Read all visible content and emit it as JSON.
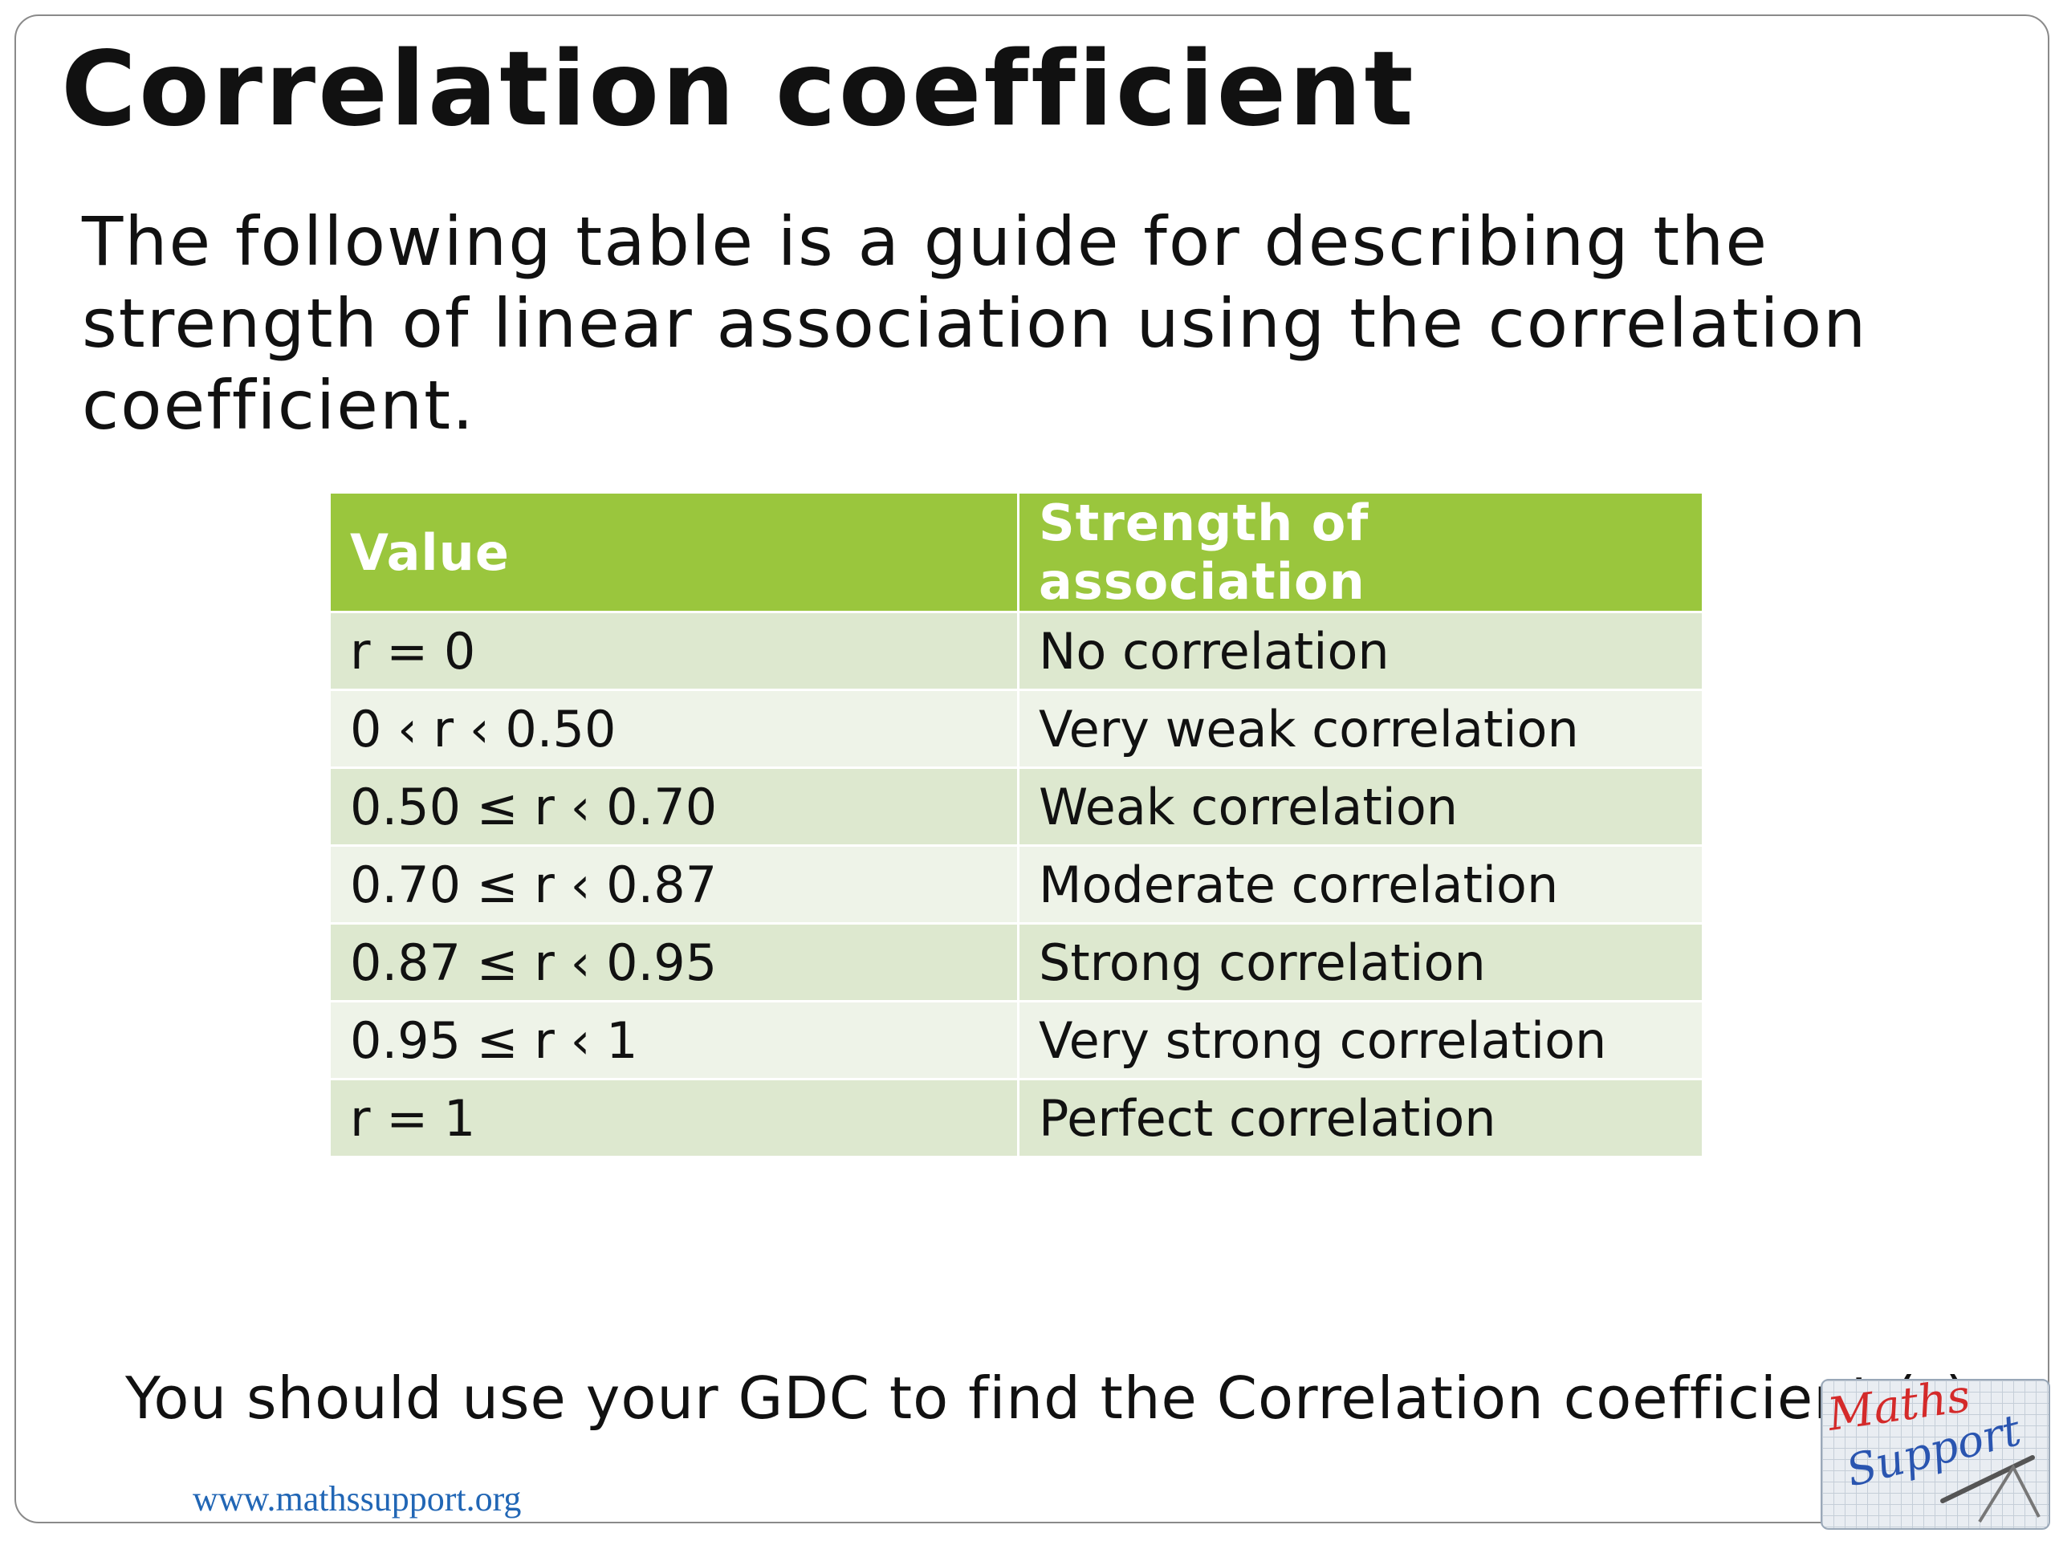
{
  "slide": {
    "title": "Correlation coefficient",
    "intro": "The following table is a guide for describing the strength of linear association using the correlation coefficient.",
    "table": {
      "headers": [
        "Value",
        "Strength of association"
      ],
      "rows": [
        {
          "value": "r  = 0",
          "strength": "No correlation"
        },
        {
          "value": "0 ‹ r ‹ 0.50",
          "strength": "Very weak correlation"
        },
        {
          "value": "0.50 ≤ r  ‹ 0.70",
          "strength": "Weak correlation"
        },
        {
          "value": "0.70 ≤ r  ‹ 0.87",
          "strength": "Moderate correlation"
        },
        {
          "value": "0.87 ≤ r  ‹ 0.95",
          "strength": "Strong correlation"
        },
        {
          "value": "0.95 ≤ r  ‹ 1",
          "strength": "Very strong correlation"
        },
        {
          "value": "r  = 1",
          "strength": "Perfect correlation"
        }
      ]
    },
    "footer_note": {
      "text": "You should use your GDC to find the Correlation coefficient (",
      "symbol": "r",
      "close": ")"
    },
    "url": "www.mathssupport.org",
    "logo": {
      "line1": "Maths",
      "line2": "Support"
    }
  },
  "colors": {
    "header_bg": "#9ac63d",
    "row_dark": "#dde8cf",
    "row_light": "#eef3e8",
    "url": "#2166b5",
    "logo_maths": "#d42a2a",
    "logo_support": "#2a55b0"
  }
}
